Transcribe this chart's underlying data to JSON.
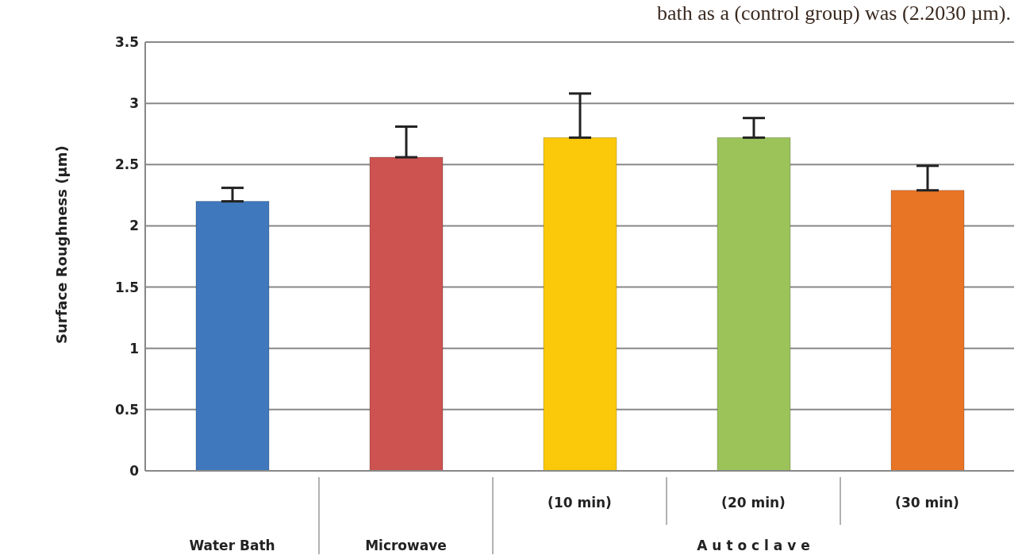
{
  "chart_data": {
    "type": "bar",
    "ylabel": "Surface Roughness (µm)",
    "categories": [
      "Water Bath",
      "Microwave",
      "(10 min)",
      "(20 min)",
      "(30 min)"
    ],
    "values": [
      2.2,
      2.56,
      2.72,
      2.72,
      2.29
    ],
    "colors": [
      "#3f78bc",
      "#cc5350",
      "#fcc80a",
      "#9bc35a",
      "#e87426"
    ],
    "errors": [
      [
        2.2,
        2.31
      ],
      [
        2.56,
        2.81
      ],
      [
        2.72,
        3.08
      ],
      [
        2.72,
        2.88
      ],
      [
        2.29,
        2.49
      ]
    ],
    "ylim": [
      0,
      3.5
    ],
    "yticks": [
      0,
      0.5,
      1,
      1.5,
      2,
      2.5,
      3,
      3.5
    ],
    "grid": "y",
    "annotations": [
      "bath as a (control group) was (2.2030 µm).",
      "A u t o c l a v e"
    ]
  }
}
